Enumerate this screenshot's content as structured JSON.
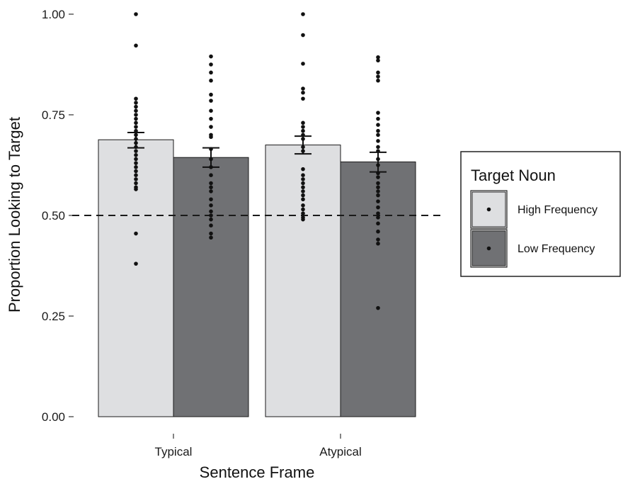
{
  "chart_data": {
    "type": "bar",
    "title": "",
    "xlabel": "Sentence Frame",
    "ylabel": "Proportion Looking to Target",
    "categories": [
      "Typical",
      "Atypical"
    ],
    "ylim": [
      0,
      1
    ],
    "yticks": [
      "0.00",
      "0.25",
      "0.50",
      "0.75",
      "1.00"
    ],
    "reference_line": {
      "y": 0.5,
      "style": "dashed"
    },
    "legend": {
      "title": "Target Noun",
      "position": "right"
    },
    "series": [
      {
        "name": "High Frequency",
        "color": "#dedfe1",
        "values": [
          0.688,
          0.675
        ],
        "error": [
          [
            0.668,
            0.706
          ],
          [
            0.653,
            0.697
          ]
        ],
        "points": [
          [
            1.0,
            0.922,
            0.79,
            0.78,
            0.77,
            0.76,
            0.75,
            0.74,
            0.73,
            0.72,
            0.71,
            0.7,
            0.69,
            0.68,
            0.67,
            0.66,
            0.65,
            0.64,
            0.63,
            0.62,
            0.61,
            0.6,
            0.59,
            0.58,
            0.57,
            0.565,
            0.455,
            0.38
          ],
          [
            1.0,
            0.948,
            0.877,
            0.815,
            0.805,
            0.79,
            0.73,
            0.72,
            0.71,
            0.7,
            0.69,
            0.67,
            0.66,
            0.615,
            0.6,
            0.59,
            0.58,
            0.57,
            0.56,
            0.55,
            0.54,
            0.525,
            0.515,
            0.505,
            0.495,
            0.49
          ]
        ]
      },
      {
        "name": "Low Frequency",
        "color": "#707174",
        "values": [
          0.644,
          0.633
        ],
        "error": [
          [
            0.62,
            0.668
          ],
          [
            0.608,
            0.657
          ]
        ],
        "points": [
          [
            0.895,
            0.875,
            0.855,
            0.835,
            0.8,
            0.785,
            0.76,
            0.74,
            0.72,
            0.7,
            0.695,
            0.665,
            0.64,
            0.62,
            0.6,
            0.58,
            0.57,
            0.56,
            0.54,
            0.525,
            0.51,
            0.5,
            0.49,
            0.475,
            0.455,
            0.445
          ],
          [
            0.893,
            0.885,
            0.855,
            0.845,
            0.835,
            0.755,
            0.74,
            0.725,
            0.71,
            0.7,
            0.685,
            0.67,
            0.66,
            0.64,
            0.625,
            0.605,
            0.595,
            0.58,
            0.57,
            0.56,
            0.55,
            0.535,
            0.52,
            0.505,
            0.495,
            0.48,
            0.46,
            0.44,
            0.43,
            0.27
          ]
        ]
      }
    ]
  }
}
